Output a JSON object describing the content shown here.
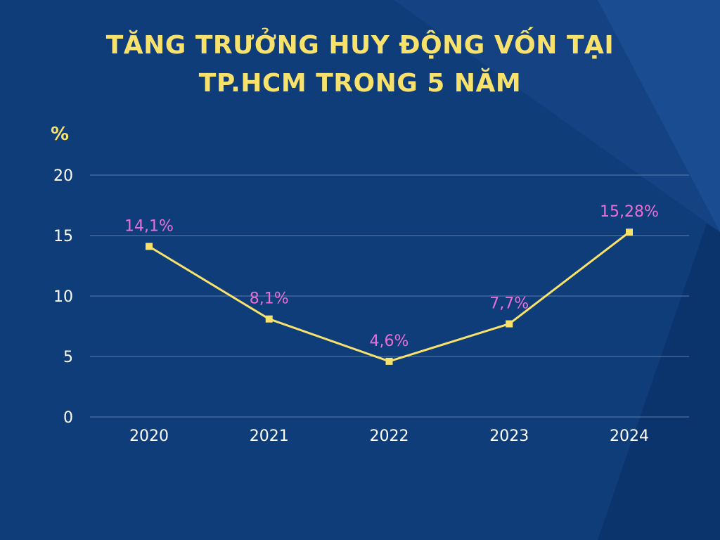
{
  "colors": {
    "background": "#0f3d7a",
    "title": "#f9e26b",
    "line": "#f9e26b",
    "marker": "#f9e26b",
    "data_label": "#e86fd6",
    "grid": "#5f7fae",
    "tick": "#ffffff",
    "ylabel": "#f9e26b"
  },
  "chart_data": {
    "type": "line",
    "title_lines": [
      "TĂNG TRƯỞNG HUY ĐỘNG VỐN TẠI",
      "TP.HCM TRONG 5 NĂM"
    ],
    "xlabel": "",
    "ylabel": "%",
    "categories": [
      "2020",
      "2021",
      "2022",
      "2023",
      "2024"
    ],
    "series": [
      {
        "values": [
          14.1,
          8.1,
          4.6,
          7.7,
          15.28
        ],
        "labels": [
          "14,1%",
          "8,1%",
          "4,6%",
          "7,7%",
          "15,28%"
        ]
      }
    ],
    "ylim": [
      0,
      20
    ],
    "yticks": [
      0,
      5,
      10,
      15,
      20
    ],
    "grid": true,
    "legend": "none"
  }
}
